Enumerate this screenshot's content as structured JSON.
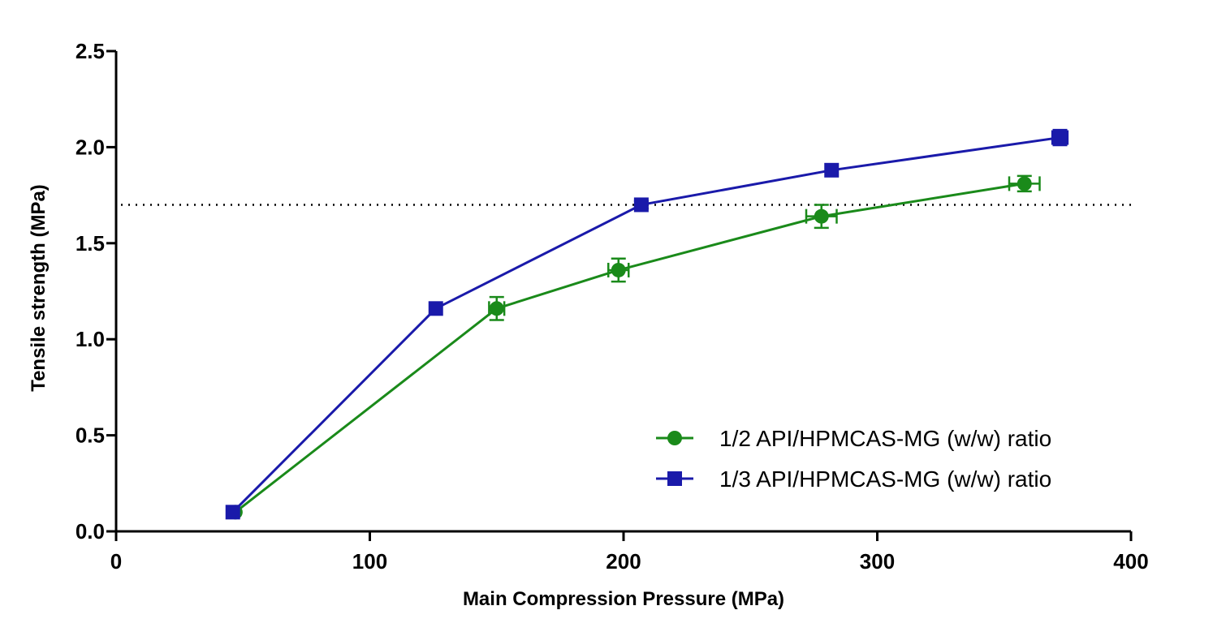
{
  "chart_data": {
    "type": "line",
    "title": "",
    "xlabel": "Main Compression Pressure (MPa)",
    "ylabel": "Tensile strength (MPa)",
    "xlim": [
      0,
      400
    ],
    "ylim": [
      0,
      2.5
    ],
    "xticks": [
      0,
      100,
      200,
      300,
      400
    ],
    "yticks": [
      0.0,
      0.5,
      1.0,
      1.5,
      2.0,
      2.5
    ],
    "xtick_labels": [
      "0",
      "100",
      "200",
      "300",
      "400"
    ],
    "ytick_labels": [
      "0.0",
      "0.5",
      "1.0",
      "1.5",
      "2.0",
      "2.5"
    ],
    "grid": false,
    "legend_position": "bottom-right",
    "reference_line": {
      "y": 1.7,
      "style": "dotted"
    },
    "series": [
      {
        "name": "1/2 API/HPMCAS-MG (w/w) ratio",
        "marker": "circle",
        "color": "#1a8a1a",
        "points": [
          {
            "x": 47,
            "y": 0.1,
            "xerr": 0,
            "yerr": 0
          },
          {
            "x": 150,
            "y": 1.16,
            "xerr": 3,
            "yerr": 0.06
          },
          {
            "x": 198,
            "y": 1.36,
            "xerr": 4,
            "yerr": 0.06
          },
          {
            "x": 278,
            "y": 1.64,
            "xerr": 6,
            "yerr": 0.06
          },
          {
            "x": 358,
            "y": 1.81,
            "xerr": 6,
            "yerr": 0.04
          }
        ]
      },
      {
        "name": "1/3 API/HPMCAS-MG (w/w) ratio",
        "marker": "square",
        "color": "#1a1aaa",
        "points": [
          {
            "x": 46,
            "y": 0.1,
            "xerr": 0,
            "yerr": 0
          },
          {
            "x": 126,
            "y": 1.16,
            "xerr": 0,
            "yerr": 0
          },
          {
            "x": 207,
            "y": 1.7,
            "xerr": 0,
            "yerr": 0.02
          },
          {
            "x": 282,
            "y": 1.88,
            "xerr": 0,
            "yerr": 0
          },
          {
            "x": 372,
            "y": 2.05,
            "xerr": 3,
            "yerr": 0.04
          }
        ]
      }
    ]
  }
}
